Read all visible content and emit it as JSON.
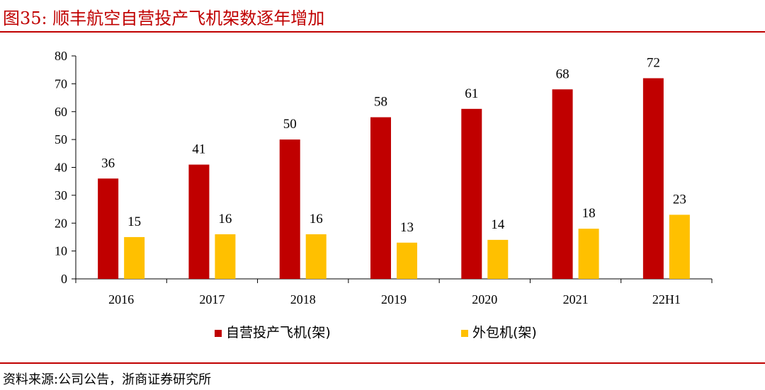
{
  "figure": {
    "title": "图35:    顺丰航空自营投产飞机架数逐年增加",
    "source": "资料来源:公司公告，浙商证券研究所"
  },
  "colors": {
    "accent": "#c00000",
    "series_red": "#c00000",
    "series_yellow": "#ffc000"
  },
  "chart_data": {
    "type": "bar",
    "categories": [
      "2016",
      "2017",
      "2018",
      "2019",
      "2020",
      "2021",
      "22H1"
    ],
    "series": [
      {
        "name": "自营投产飞机(架)",
        "color": "#c00000",
        "values": [
          36,
          41,
          50,
          58,
          61,
          68,
          72
        ]
      },
      {
        "name": "外包机(架)",
        "color": "#ffc000",
        "values": [
          15,
          16,
          16,
          13,
          14,
          18,
          23
        ]
      }
    ],
    "ylim": [
      0,
      80
    ],
    "yticks": [
      0,
      10,
      20,
      30,
      40,
      50,
      60,
      70,
      80
    ],
    "xlabel": "",
    "ylabel": "",
    "grid": false,
    "legend": "bottom"
  }
}
